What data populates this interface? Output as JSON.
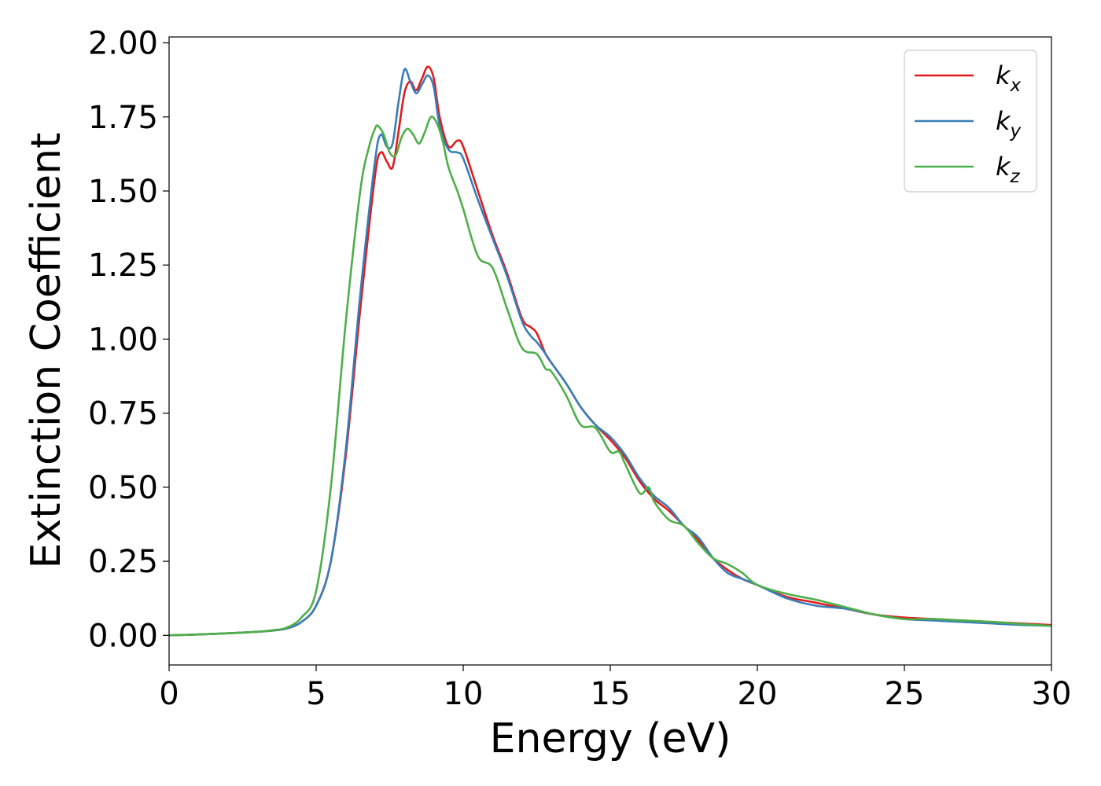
{
  "chart_data": {
    "type": "line",
    "xlabel": "Energy (eV)",
    "ylabel": "Extinction Coefficient",
    "xlim": [
      0,
      30
    ],
    "ylim": [
      -0.1,
      2.02
    ],
    "xticks": [
      "0",
      "5",
      "10",
      "15",
      "20",
      "25",
      "30"
    ],
    "yticks": [
      "0.00",
      "0.25",
      "0.50",
      "0.75",
      "1.00",
      "1.25",
      "1.50",
      "1.75",
      "2.00"
    ],
    "grid": false,
    "legend_position": "top-right",
    "series": [
      {
        "name": "k",
        "subscript": "x",
        "color": "#e41a1c",
        "x": [
          0,
          1,
          2,
          3,
          3.5,
          4,
          4.5,
          5,
          5.5,
          6,
          6.5,
          7,
          7.2,
          7.4,
          7.6,
          7.8,
          8,
          8.2,
          8.4,
          8.6,
          8.8,
          9,
          9.2,
          9.5,
          9.8,
          10,
          10.5,
          11,
          11.5,
          12,
          12.3,
          12.5,
          12.8,
          13,
          13.5,
          14,
          14.5,
          15,
          15.5,
          16,
          16.5,
          17,
          17.5,
          18,
          18.5,
          19,
          19.5,
          20,
          21,
          22,
          23,
          24,
          25,
          26,
          27,
          28,
          29,
          30
        ],
        "values": [
          0.0,
          0.003,
          0.007,
          0.012,
          0.016,
          0.023,
          0.045,
          0.1,
          0.25,
          0.6,
          1.1,
          1.55,
          1.63,
          1.6,
          1.58,
          1.7,
          1.83,
          1.87,
          1.84,
          1.88,
          1.92,
          1.88,
          1.75,
          1.65,
          1.67,
          1.65,
          1.5,
          1.35,
          1.22,
          1.07,
          1.04,
          1.02,
          0.95,
          0.92,
          0.85,
          0.77,
          0.71,
          0.66,
          0.6,
          0.52,
          0.46,
          0.42,
          0.37,
          0.32,
          0.26,
          0.22,
          0.19,
          0.17,
          0.13,
          0.11,
          0.09,
          0.07,
          0.06,
          0.055,
          0.05,
          0.045,
          0.04,
          0.035
        ]
      },
      {
        "name": "k",
        "subscript": "y",
        "color": "#377eb8",
        "x": [
          0,
          1,
          2,
          3,
          3.5,
          4,
          4.5,
          5,
          5.5,
          6,
          6.5,
          7,
          7.2,
          7.4,
          7.6,
          7.8,
          8,
          8.2,
          8.4,
          8.6,
          8.8,
          9,
          9.2,
          9.5,
          9.8,
          10,
          10.5,
          11,
          11.5,
          12,
          12.3,
          12.5,
          12.8,
          13,
          13.5,
          14,
          14.5,
          15,
          15.5,
          16,
          16.5,
          17,
          17.5,
          18,
          18.5,
          19,
          19.5,
          20,
          21,
          22,
          23,
          24,
          25,
          26,
          27,
          28,
          29,
          30
        ],
        "values": [
          0.0,
          0.003,
          0.007,
          0.012,
          0.016,
          0.023,
          0.045,
          0.1,
          0.25,
          0.62,
          1.15,
          1.6,
          1.69,
          1.65,
          1.66,
          1.8,
          1.91,
          1.87,
          1.83,
          1.86,
          1.89,
          1.85,
          1.72,
          1.64,
          1.63,
          1.61,
          1.47,
          1.34,
          1.21,
          1.06,
          1.01,
          0.99,
          0.95,
          0.92,
          0.85,
          0.77,
          0.71,
          0.67,
          0.61,
          0.53,
          0.47,
          0.43,
          0.37,
          0.33,
          0.26,
          0.21,
          0.19,
          0.17,
          0.125,
          0.1,
          0.09,
          0.07,
          0.055,
          0.05,
          0.045,
          0.04,
          0.035,
          0.032
        ]
      },
      {
        "name": "k",
        "subscript": "z",
        "color": "#4daf4a",
        "x": [
          0,
          1,
          2,
          3,
          3.5,
          4,
          4.5,
          5,
          5.5,
          6,
          6.5,
          6.8,
          7,
          7.1,
          7.3,
          7.5,
          7.7,
          7.9,
          8.1,
          8.3,
          8.5,
          8.7,
          8.9,
          9.1,
          9.3,
          9.5,
          9.8,
          10,
          10.5,
          11,
          11.5,
          12,
          12.5,
          12.8,
          13,
          13.5,
          14,
          14.5,
          15,
          15.3,
          15.5,
          16,
          16.3,
          16.5,
          17,
          17.5,
          18,
          18.5,
          19,
          19.5,
          20,
          21,
          22,
          23,
          24,
          25,
          26,
          27,
          28,
          29,
          30
        ],
        "values": [
          0.0,
          0.003,
          0.007,
          0.012,
          0.017,
          0.026,
          0.06,
          0.15,
          0.5,
          1.05,
          1.5,
          1.65,
          1.71,
          1.72,
          1.69,
          1.63,
          1.62,
          1.68,
          1.71,
          1.69,
          1.66,
          1.7,
          1.75,
          1.73,
          1.67,
          1.58,
          1.5,
          1.44,
          1.28,
          1.24,
          1.1,
          0.97,
          0.95,
          0.9,
          0.89,
          0.81,
          0.71,
          0.7,
          0.62,
          0.62,
          0.58,
          0.48,
          0.5,
          0.45,
          0.39,
          0.37,
          0.31,
          0.26,
          0.24,
          0.21,
          0.17,
          0.14,
          0.12,
          0.095,
          0.07,
          0.055,
          0.055,
          0.05,
          0.045,
          0.038,
          0.032
        ]
      }
    ]
  }
}
